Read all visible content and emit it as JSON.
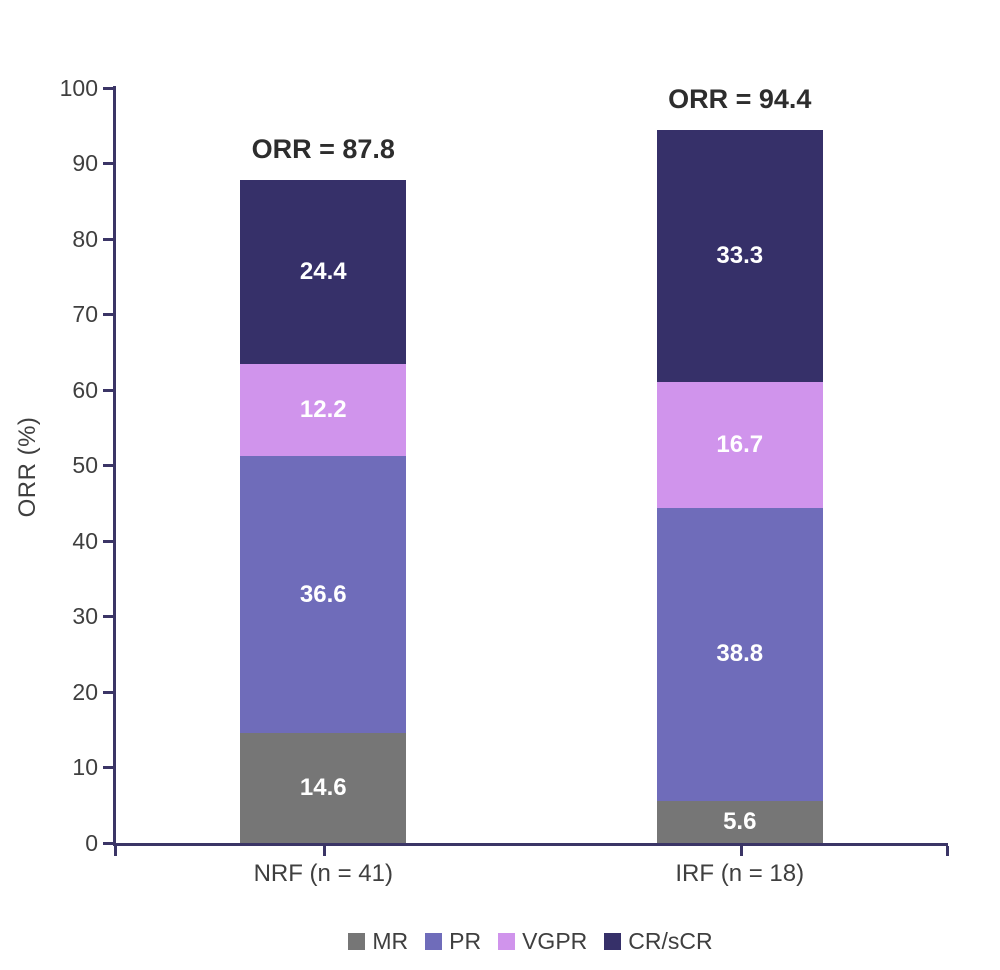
{
  "chart_data": {
    "type": "bar",
    "stacked": true,
    "title": "",
    "xlabel": "",
    "ylabel": "ORR (%)",
    "ylim": [
      0,
      100
    ],
    "yticks": [
      0,
      10,
      20,
      30,
      40,
      50,
      60,
      70,
      80,
      90,
      100
    ],
    "grid": false,
    "categories": [
      "NRF (n = 41)",
      "IRF (n = 18)"
    ],
    "series": [
      {
        "name": "MR",
        "color": "#767676",
        "values": [
          14.6,
          5.6
        ]
      },
      {
        "name": "PR",
        "color": "#6f6cba",
        "values": [
          36.6,
          38.8
        ]
      },
      {
        "name": "VGPR",
        "color": "#d094ec",
        "values": [
          12.2,
          16.7
        ]
      },
      {
        "name": "CR/sCR",
        "color": "#363069",
        "values": [
          24.4,
          33.3
        ]
      }
    ],
    "annotations": [
      {
        "text": "ORR = 87.8",
        "category_index": 0,
        "total": 87.8
      },
      {
        "text": "ORR = 94.4",
        "category_index": 1,
        "total": 94.4
      }
    ],
    "legend": {
      "position": "bottom",
      "labels": [
        "MR",
        "PR",
        "VGPR",
        "CR/sCR"
      ]
    }
  },
  "colors": {
    "axis": "#3b3566",
    "tick_label": "#3f3f3f",
    "segment_label": "#ffffff",
    "annotation": "#2d2d2d",
    "background": "#ffffff"
  }
}
